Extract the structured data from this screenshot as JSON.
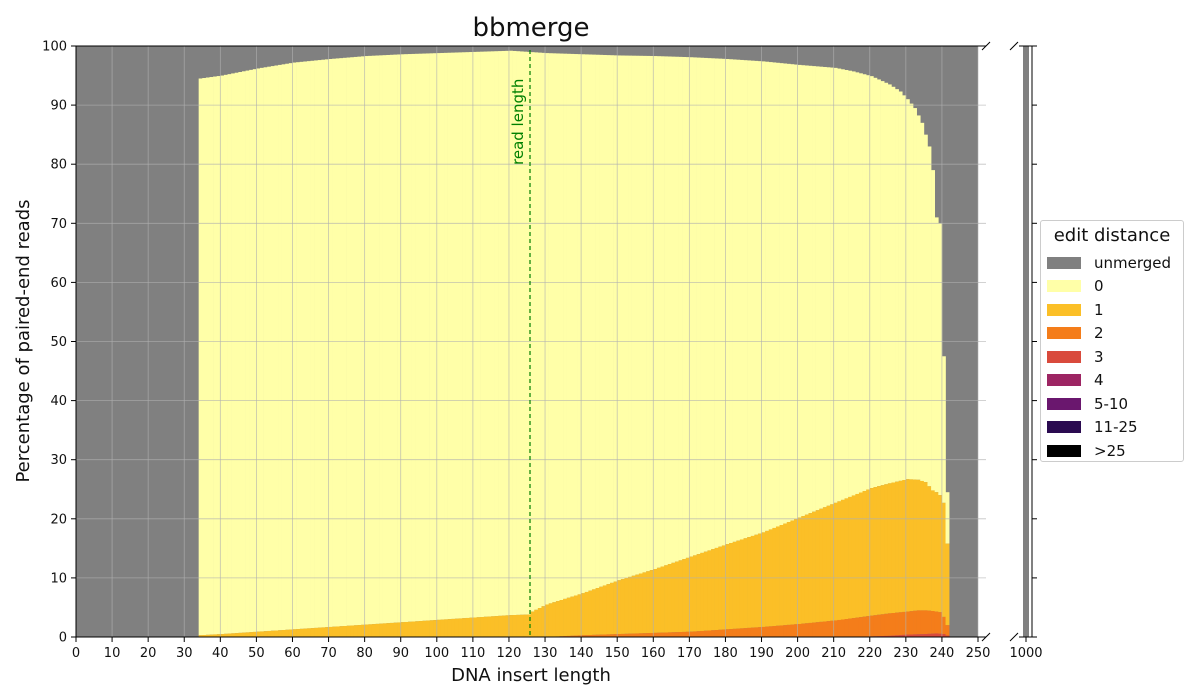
{
  "chart_data": {
    "type": "bar",
    "stacked": true,
    "title": "bbmerge",
    "xlabel": "DNA insert length",
    "ylabel": "Percentage of paired-end reads",
    "xlim": [
      0,
      250
    ],
    "ylim": [
      0,
      100
    ],
    "x_ticks": [
      "0",
      "10",
      "20",
      "30",
      "40",
      "50",
      "60",
      "70",
      "80",
      "90",
      "100",
      "110",
      "120",
      "130",
      "140",
      "150",
      "160",
      "170",
      "180",
      "190",
      "200",
      "210",
      "220",
      "230",
      "240",
      "250"
    ],
    "y_ticks": [
      "0",
      "10",
      "20",
      "30",
      "40",
      "50",
      "60",
      "70",
      "80",
      "90",
      "100"
    ],
    "broken_axis": {
      "extra_tick": "1000",
      "extra_bar_category": "unmerged"
    },
    "grid": true,
    "legend_position": "right",
    "legend_title": "edit distance",
    "annotation": {
      "text": "read length",
      "x": 125,
      "color": "#008000"
    },
    "series": [
      {
        "name": "unmerged",
        "color": "#808080"
      },
      {
        "name": "0",
        "color": "#ffffa8"
      },
      {
        "name": "1",
        "color": "#fbbf27"
      },
      {
        "name": "2",
        "color": "#f47d1a"
      },
      {
        "name": "3",
        "color": "#d94a3c"
      },
      {
        "name": "4",
        "color": "#9d2563"
      },
      {
        "name": "5-10",
        "color": "#6a176e"
      },
      {
        "name": "11-25",
        "color": "#2a0a50"
      },
      {
        "name": ">25",
        "color": "#000000"
      }
    ],
    "unmerged_top_profile": {
      "x": [
        34,
        40,
        50,
        60,
        70,
        80,
        90,
        100,
        110,
        120,
        125,
        130,
        140,
        150,
        160,
        170,
        180,
        190,
        200,
        210,
        215,
        220,
        225,
        228,
        230,
        232,
        234,
        235,
        236,
        237,
        238,
        239,
        240,
        241,
        242
      ],
      "merged_percent": [
        94.5,
        95.0,
        96.2,
        97.2,
        97.8,
        98.3,
        98.6,
        98.8,
        99.0,
        99.2,
        99.0,
        98.8,
        98.6,
        98.4,
        98.3,
        98.1,
        97.8,
        97.4,
        96.8,
        96.3,
        95.7,
        94.9,
        93.5,
        92.3,
        91.0,
        89.5,
        87.0,
        85.0,
        83.0,
        79.0,
        71.0,
        70.0,
        47.5,
        24.5,
        0
      ]
    },
    "edit1_top_profile": {
      "x": [
        34,
        40,
        50,
        60,
        70,
        80,
        90,
        100,
        110,
        120,
        125,
        126,
        130,
        140,
        150,
        160,
        170,
        180,
        190,
        200,
        210,
        220,
        225,
        230,
        233,
        235,
        236,
        237,
        238,
        239,
        240,
        241,
        242
      ],
      "percent": [
        0.3,
        0.5,
        0.9,
        1.3,
        1.7,
        2.1,
        2.5,
        2.9,
        3.3,
        3.7,
        3.8,
        4.3,
        5.5,
        7.4,
        9.6,
        11.5,
        13.6,
        15.7,
        17.7,
        20.2,
        22.7,
        25.2,
        26.0,
        26.7,
        26.6,
        26.2,
        25.5,
        24.8,
        24.5,
        24.0,
        22.7,
        15.8,
        0
      ]
    },
    "edit2_top_profile": {
      "x": [
        34,
        130,
        140,
        150,
        160,
        170,
        180,
        190,
        200,
        210,
        220,
        225,
        230,
        233,
        235,
        237,
        239,
        240,
        241,
        242
      ],
      "percent": [
        0,
        0,
        0.3,
        0.5,
        0.7,
        0.9,
        1.3,
        1.7,
        2.2,
        2.8,
        3.6,
        4.0,
        4.3,
        4.5,
        4.5,
        4.4,
        4.2,
        3.4,
        2.0,
        0
      ]
    },
    "edit3_top_profile": {
      "x": [
        34,
        215,
        225,
        230,
        235,
        238,
        240,
        242
      ],
      "percent": [
        0,
        0,
        0.2,
        0.4,
        0.5,
        0.6,
        0.5,
        0
      ]
    },
    "unmerged_at_1000": 100
  }
}
